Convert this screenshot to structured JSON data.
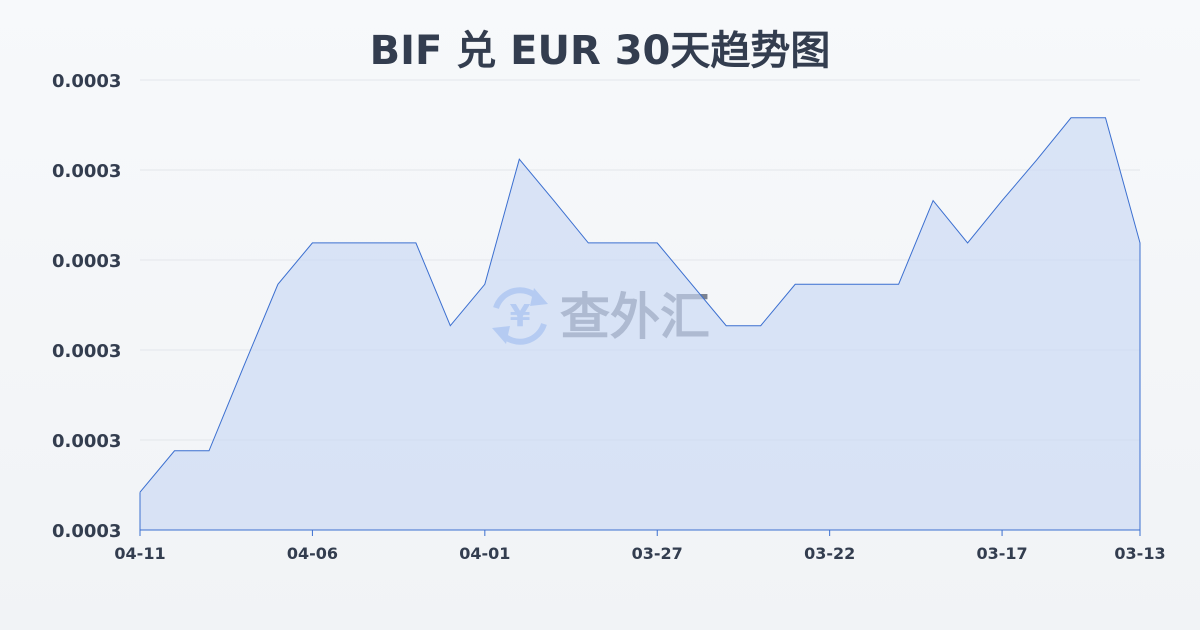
{
  "chart_data": {
    "type": "area",
    "title": "BIF 兑 EUR 30天趋势图",
    "xlabel": "",
    "ylabel": "",
    "x": [
      "04-11",
      "04-10",
      "04-09",
      "04-08",
      "04-07",
      "04-06",
      "04-05",
      "04-04",
      "04-03",
      "04-02",
      "04-01",
      "03-31",
      "03-30",
      "03-29",
      "03-28",
      "03-27",
      "03-26",
      "03-25",
      "03-24",
      "03-23",
      "03-22",
      "03-21",
      "03-20",
      "03-19",
      "03-18",
      "03-17",
      "03-16",
      "03-15",
      "03-14",
      "03-13"
    ],
    "values": [
      0.00030042,
      0.00030088,
      0.00030088,
      0.00030181,
      0.00030273,
      0.00030319,
      0.00030319,
      0.00030319,
      0.00030319,
      0.00030227,
      0.00030273,
      0.00030412,
      0.00030366,
      0.00030319,
      0.00030319,
      0.00030319,
      0.00030273,
      0.00030227,
      0.00030227,
      0.00030273,
      0.00030273,
      0.00030273,
      0.00030273,
      0.00030366,
      0.00030319,
      0.00030366,
      0.00030411,
      0.00030458,
      0.00030458,
      0.00030319
    ],
    "x_tick_labels": [
      "04-11",
      "04-06",
      "04-01",
      "03-27",
      "03-22",
      "03-17",
      "03-13"
    ],
    "y_ticks": [
      0.0003,
      0.000301,
      0.000302,
      0.000303,
      0.000304,
      0.000305
    ],
    "y_tick_labels": [
      "0.0003",
      "0.0003",
      "0.0003",
      "0.0003",
      "0.0003",
      "0.0003"
    ],
    "ylim": [
      0.0003,
      0.000305
    ],
    "grid": true,
    "colors": {
      "line": "#3b6fd0",
      "fill": "#c9d8f5",
      "text": "#333d4f",
      "grid": "#e3e6eb"
    }
  },
  "watermark": {
    "text": "查外汇",
    "icon": "yen-exchange-icon"
  }
}
